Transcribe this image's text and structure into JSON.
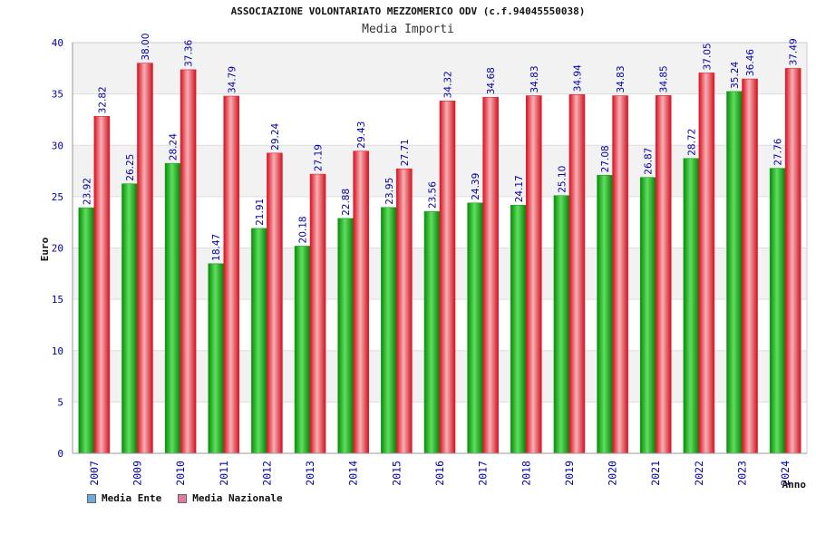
{
  "chart_data": {
    "type": "bar",
    "title": "ASSOCIAZIONE VOLONTARIATO MEZZOMERICO ODV (c.f.94045550038)",
    "subtitle": "Media Importi",
    "xlabel": "Anno",
    "ylabel": "Euro",
    "ylim": [
      0,
      40
    ],
    "yticks": [
      "0",
      "5",
      "10",
      "15",
      "20",
      "25",
      "30",
      "35",
      "40"
    ],
    "grid": true,
    "legend_position": "bottom-left",
    "categories": [
      "2007",
      "2009",
      "2010",
      "2011",
      "2012",
      "2013",
      "2014",
      "2015",
      "2016",
      "2017",
      "2018",
      "2019",
      "2020",
      "2021",
      "2022",
      "2023",
      "2024"
    ],
    "series": [
      {
        "name": "Media Ente",
        "legend_color": "#6fa8dc",
        "color": "#1aa41a",
        "values": [
          23.92,
          26.25,
          28.24,
          18.47,
          21.91,
          20.18,
          22.88,
          23.95,
          23.56,
          24.39,
          24.17,
          25.1,
          27.08,
          26.87,
          28.72,
          35.24,
          27.76
        ],
        "labels": [
          "23.92",
          "26.25",
          "28.24",
          "18.47",
          "21.91",
          "20.18",
          "22.88",
          "23.95",
          "23.56",
          "24.39",
          "24.17",
          "25.10",
          "27.08",
          "26.87",
          "28.72",
          "35.24",
          "27.76"
        ]
      },
      {
        "name": "Media Nazionale",
        "legend_color": "#e07aa3",
        "color": "#e8202c",
        "values": [
          32.82,
          38.0,
          37.36,
          34.79,
          29.24,
          27.19,
          29.43,
          27.71,
          34.32,
          34.68,
          34.83,
          34.94,
          34.83,
          34.85,
          37.05,
          36.46,
          37.49
        ],
        "labels": [
          "32.82",
          "38.00",
          "37.36",
          "34.79",
          "29.24",
          "27.19",
          "29.43",
          "27.71",
          "34.32",
          "34.68",
          "34.83",
          "34.94",
          "34.83",
          "34.85",
          "37.05",
          "36.46",
          "37.49"
        ]
      }
    ]
  }
}
